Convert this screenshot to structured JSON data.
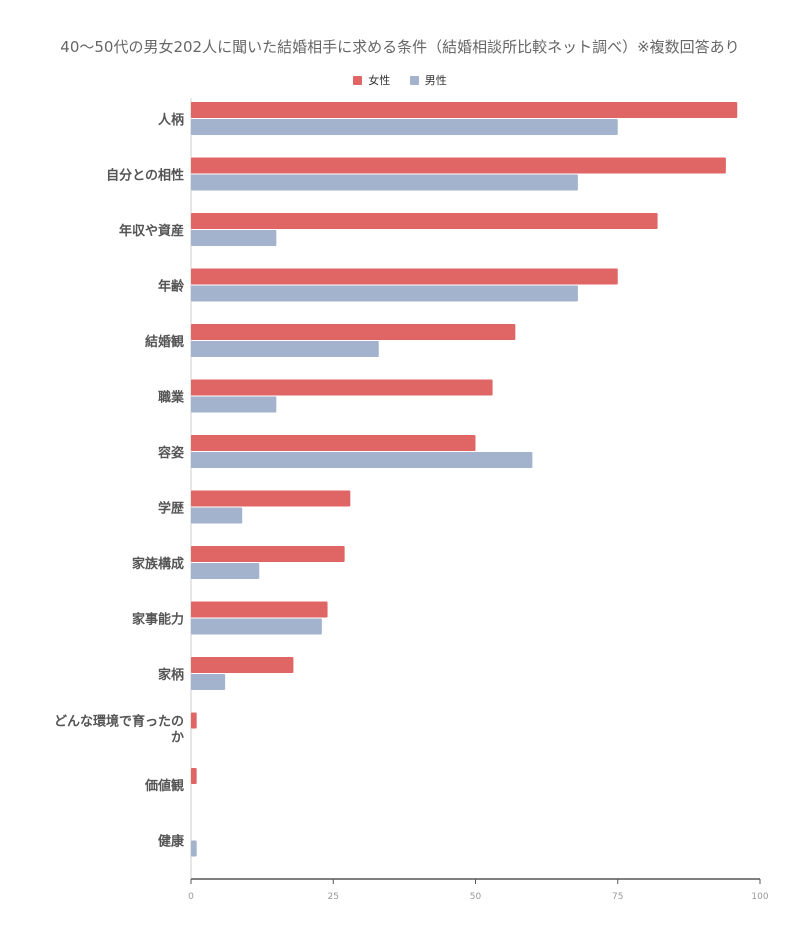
{
  "chart_data": {
    "type": "bar",
    "orientation": "horizontal",
    "title": "40〜50代の男女202人に聞いた結婚相手に求める条件（結婚相談所比較ネット調べ）※複数回答あり",
    "legend_position": "top-center",
    "grid": false,
    "categories": [
      "人柄",
      "自分との相性",
      "年収や資産",
      "年齢",
      "結婚観",
      "職業",
      "容姿",
      "学歴",
      "家族構成",
      "家事能力",
      "家柄",
      "どんな環境で育ったのか",
      "価値観",
      "健康"
    ],
    "series": [
      {
        "name": "女性",
        "color": "#e06666",
        "values": [
          96,
          94,
          82,
          75,
          57,
          53,
          50,
          28,
          27,
          24,
          18,
          1,
          1,
          0
        ]
      },
      {
        "name": "男性",
        "color": "#a4b3cd",
        "values": [
          75,
          68,
          15,
          68,
          33,
          15,
          60,
          9,
          12,
          23,
          6,
          0,
          0,
          1
        ]
      }
    ],
    "xlim": [
      0,
      100
    ],
    "xticks": [
      "0",
      "25",
      "50",
      "75",
      "100"
    ]
  }
}
